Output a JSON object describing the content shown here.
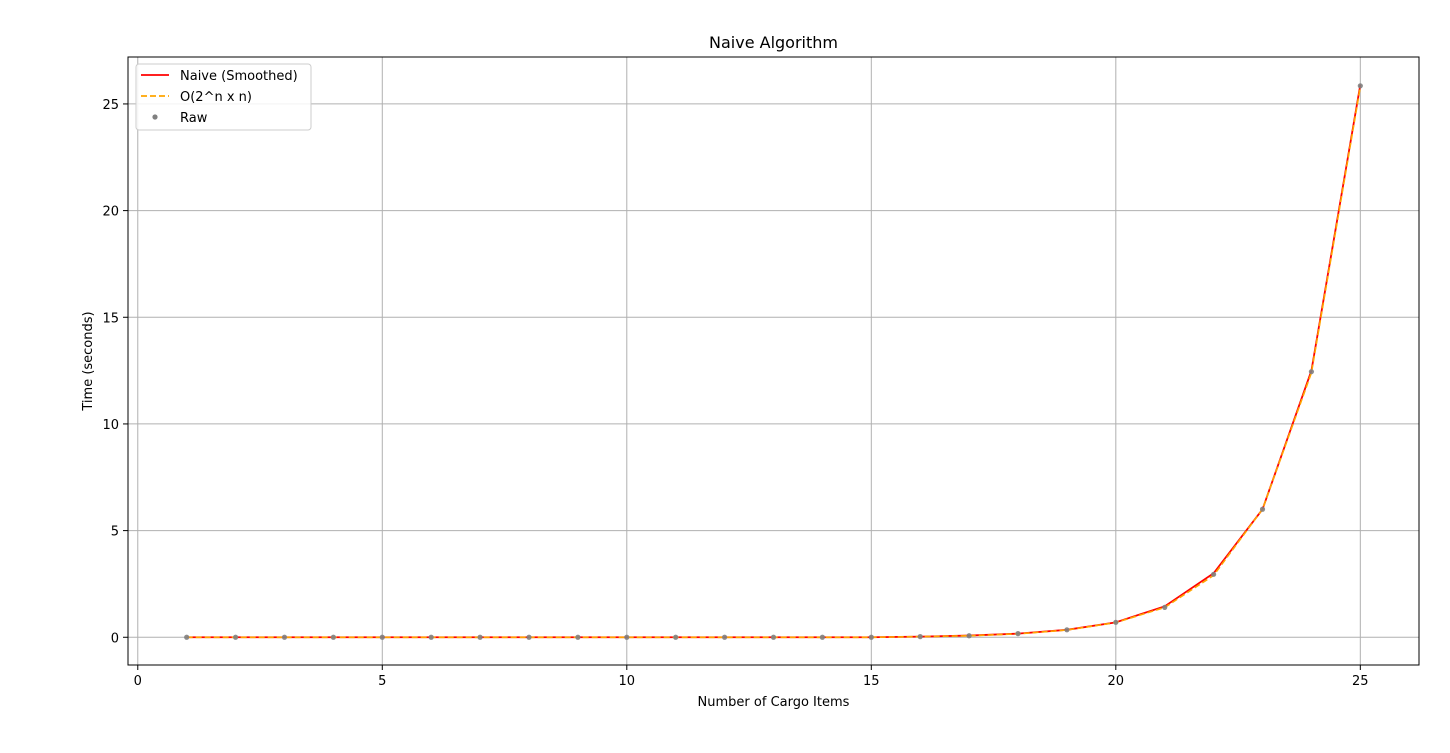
{
  "chart_data": {
    "type": "line",
    "title": "Naive Algorithm",
    "xlabel": "Number of Cargo Items",
    "ylabel": "Time (seconds)",
    "xlim": [
      -0.2,
      26.2
    ],
    "ylim": [
      -1.3,
      27.2
    ],
    "xticks": [
      0,
      5,
      10,
      15,
      20,
      25
    ],
    "yticks": [
      0,
      5,
      10,
      15,
      20,
      25
    ],
    "grid": true,
    "legend_position": "top-left",
    "x": [
      1,
      2,
      3,
      4,
      5,
      6,
      7,
      8,
      9,
      10,
      11,
      12,
      13,
      14,
      15,
      16,
      17,
      18,
      19,
      20,
      21,
      22,
      23,
      24,
      25
    ],
    "series": [
      {
        "name": "Naive (Smoothed)",
        "style": "solid-line",
        "color": "#ff0000",
        "values": [
          0,
          0,
          0,
          0,
          0,
          0,
          0,
          0,
          0,
          0,
          0,
          0,
          0,
          0,
          0,
          0.03,
          0.08,
          0.17,
          0.35,
          0.7,
          1.45,
          3.0,
          6.0,
          12.5,
          25.9
        ]
      },
      {
        "name": "O(2^n x n)",
        "style": "dashed-line",
        "color": "#ffa500",
        "values": [
          0,
          0,
          0,
          0,
          0,
          0,
          0,
          0,
          0,
          0,
          0,
          0,
          0,
          0,
          0,
          0.03,
          0.07,
          0.16,
          0.34,
          0.69,
          1.4,
          2.9,
          6.0,
          12.4,
          25.8
        ]
      },
      {
        "name": "Raw",
        "style": "points",
        "color": "#808080",
        "values": [
          0,
          0,
          0,
          0,
          0,
          0,
          0,
          0,
          0,
          0,
          0,
          0,
          0,
          0,
          0,
          0.03,
          0.07,
          0.17,
          0.35,
          0.7,
          1.4,
          2.95,
          6.0,
          12.45,
          25.85
        ]
      }
    ]
  }
}
